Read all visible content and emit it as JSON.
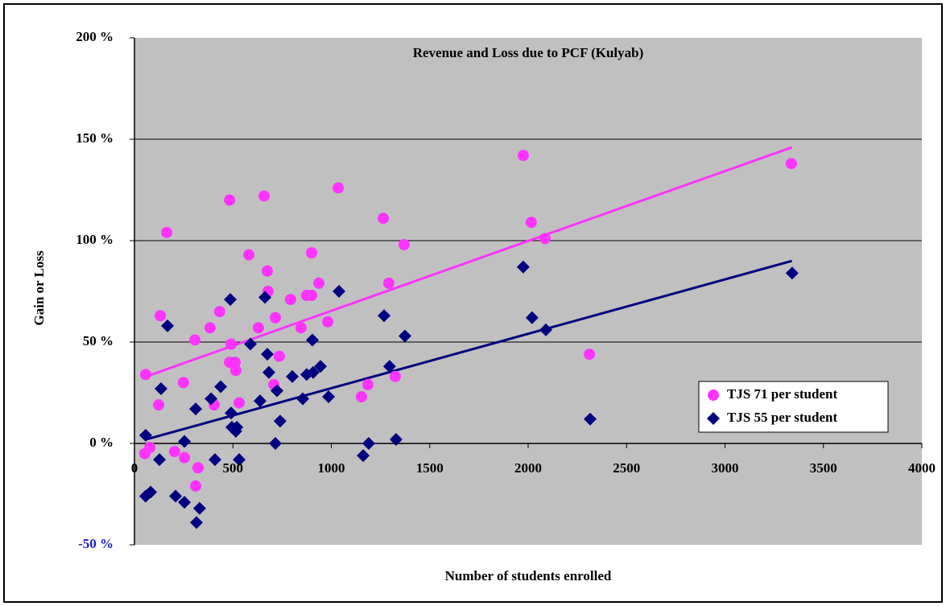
{
  "chart_data": {
    "type": "scatter",
    "title": "Revenue and Loss due to PCF (Kulyab)",
    "x_label": "Number of students enrolled",
    "y_label": "Gain or Loss",
    "xlim": [
      0,
      4000
    ],
    "xticks": [
      0,
      500,
      1000,
      1500,
      2000,
      2500,
      3000,
      3500,
      4000
    ],
    "ylim": [
      -50,
      200
    ],
    "yticks": [
      {
        "value": -50,
        "label": "-50 %"
      },
      {
        "value": 0,
        "label": "0 %"
      },
      {
        "value": 50,
        "label": "50 %"
      },
      {
        "value": 100,
        "label": "100 %"
      },
      {
        "value": 150,
        "label": "150 %"
      },
      {
        "value": 200,
        "label": "200 %"
      }
    ],
    "grid": true,
    "series": [
      {
        "name": "TJS 71 per student",
        "color": "#ff33ff",
        "marker": "circle",
        "x": [
          57,
          53,
          78,
          123,
          131,
          164,
          204,
          249,
          254,
          307,
          323,
          311,
          384,
          405,
          433,
          483,
          491,
          483,
          511,
          515,
          532,
          581,
          630,
          659,
          675,
          679,
          716,
          708,
          736,
          793,
          846,
          875,
          900,
          900,
          937,
          982,
          1035,
          1153,
          1186,
          1264,
          1292,
          1325,
          1370,
          1975,
          2016,
          2086,
          2311,
          3337
        ],
        "values": [
          34,
          -5,
          -2,
          19,
          63,
          104,
          -4,
          30,
          -7,
          51,
          -12,
          -21,
          57,
          19,
          65,
          120,
          49,
          40,
          40,
          36,
          20,
          93,
          57,
          122,
          85,
          75,
          62,
          29,
          43,
          71,
          57,
          73,
          73,
          94,
          79,
          60,
          126,
          23,
          29,
          111,
          79,
          33,
          98,
          142,
          109,
          101,
          44,
          138
        ],
        "trend": {
          "x": [
            60,
            3340
          ],
          "values": [
            33,
            146
          ]
        }
      },
      {
        "name": "TJS 55 per student",
        "color": "#000080",
        "marker": "diamond",
        "x": [
          57,
          57,
          82,
          127,
          135,
          168,
          209,
          254,
          254,
          311,
          331,
          315,
          389,
          409,
          438,
          487,
          495,
          491,
          515,
          520,
          532,
          589,
          638,
          663,
          675,
          683,
          724,
          716,
          740,
          802,
          855,
          875,
          904,
          908,
          945,
          986,
          1039,
          1162,
          1190,
          1268,
          1296,
          1329,
          1374,
          1975,
          2020,
          2090,
          2315,
          3341
        ],
        "values": [
          4,
          -26,
          -24,
          -8,
          27,
          58,
          -26,
          -29,
          1,
          17,
          -32,
          -39,
          22,
          -8,
          28,
          71,
          8,
          15,
          6,
          8,
          -8,
          49,
          21,
          72,
          44,
          35,
          26,
          0,
          11,
          33,
          22,
          34,
          51,
          35,
          38,
          23,
          75,
          -6,
          0,
          63,
          38,
          2,
          53,
          87,
          62,
          56,
          12,
          84
        ],
        "trend": {
          "x": [
            60,
            3340
          ],
          "values": [
            2,
            90
          ]
        }
      }
    ]
  }
}
